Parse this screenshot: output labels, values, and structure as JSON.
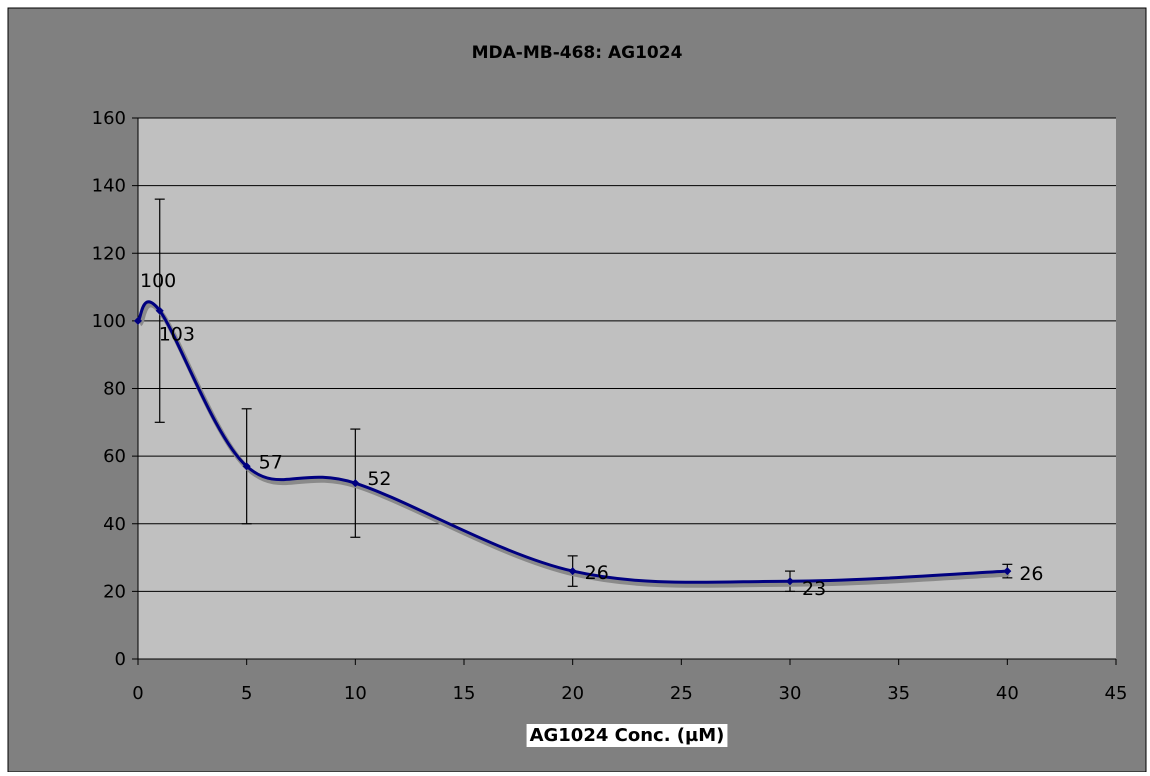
{
  "chart_data": {
    "type": "line",
    "title": "MDA-MB-468:  AG1024",
    "xlabel": "AG1024 Conc. (µM)",
    "ylabel": "",
    "xlim": [
      0,
      45
    ],
    "ylim": [
      0,
      160
    ],
    "x_ticks": [
      0,
      5,
      10,
      15,
      20,
      25,
      30,
      35,
      40,
      45
    ],
    "y_ticks": [
      0,
      20,
      40,
      60,
      80,
      100,
      120,
      140,
      160
    ],
    "grid": true,
    "smoothed": true,
    "series": [
      {
        "x": [
          0,
          1,
          5,
          10,
          20,
          30,
          40
        ],
        "y": [
          100,
          103,
          57,
          52,
          26,
          23,
          26
        ],
        "labels": [
          "100",
          "103",
          "57",
          "52",
          "26",
          "23",
          "26"
        ],
        "error": [
          0,
          33,
          17,
          16,
          4.5,
          3,
          2
        ]
      }
    ],
    "colors": {
      "outer_background": "#808080",
      "plot_background": "#c0c0c0",
      "line": "#000080",
      "line_shadow": "#8a8a8a",
      "gridline": "#000000",
      "xlabel_background": "#ffffff"
    }
  }
}
